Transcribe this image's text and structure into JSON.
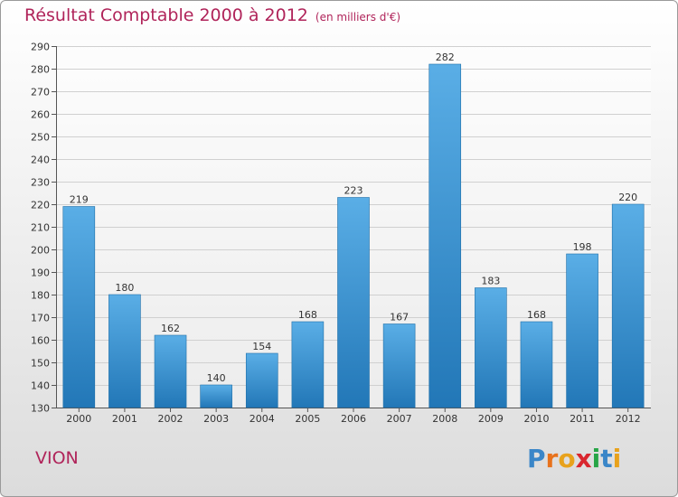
{
  "header": {
    "title": "Résultat Comptable 2000 à 2012",
    "unit": "(en milliers d'€)"
  },
  "footer": {
    "commune": "VION",
    "logo": [
      "P",
      "r",
      "o",
      "x",
      "i",
      "t",
      "i"
    ]
  },
  "colors": {
    "title": "#b0245a",
    "bar_light": "#5aaee6",
    "bar_dark": "#2277b7",
    "logo": [
      "#3a86c8",
      "#e8721c",
      "#e8a21c",
      "#d9262e",
      "#27a546",
      "#3a86c8",
      "#e8a21c"
    ]
  },
  "chart_data": {
    "type": "bar",
    "title": "Résultat Comptable 2000 à 2012",
    "xlabel": "",
    "ylabel": "",
    "categories": [
      "2000",
      "2001",
      "2002",
      "2003",
      "2004",
      "2005",
      "2006",
      "2007",
      "2008",
      "2009",
      "2010",
      "2011",
      "2012"
    ],
    "values": [
      219,
      180,
      162,
      140,
      154,
      168,
      223,
      167,
      282,
      183,
      168,
      198,
      220
    ],
    "ylim": [
      130,
      290
    ],
    "yticks": [
      130,
      140,
      150,
      160,
      170,
      180,
      190,
      200,
      210,
      220,
      230,
      240,
      250,
      260,
      270,
      280,
      290
    ],
    "grid": true,
    "data_labels": true
  }
}
